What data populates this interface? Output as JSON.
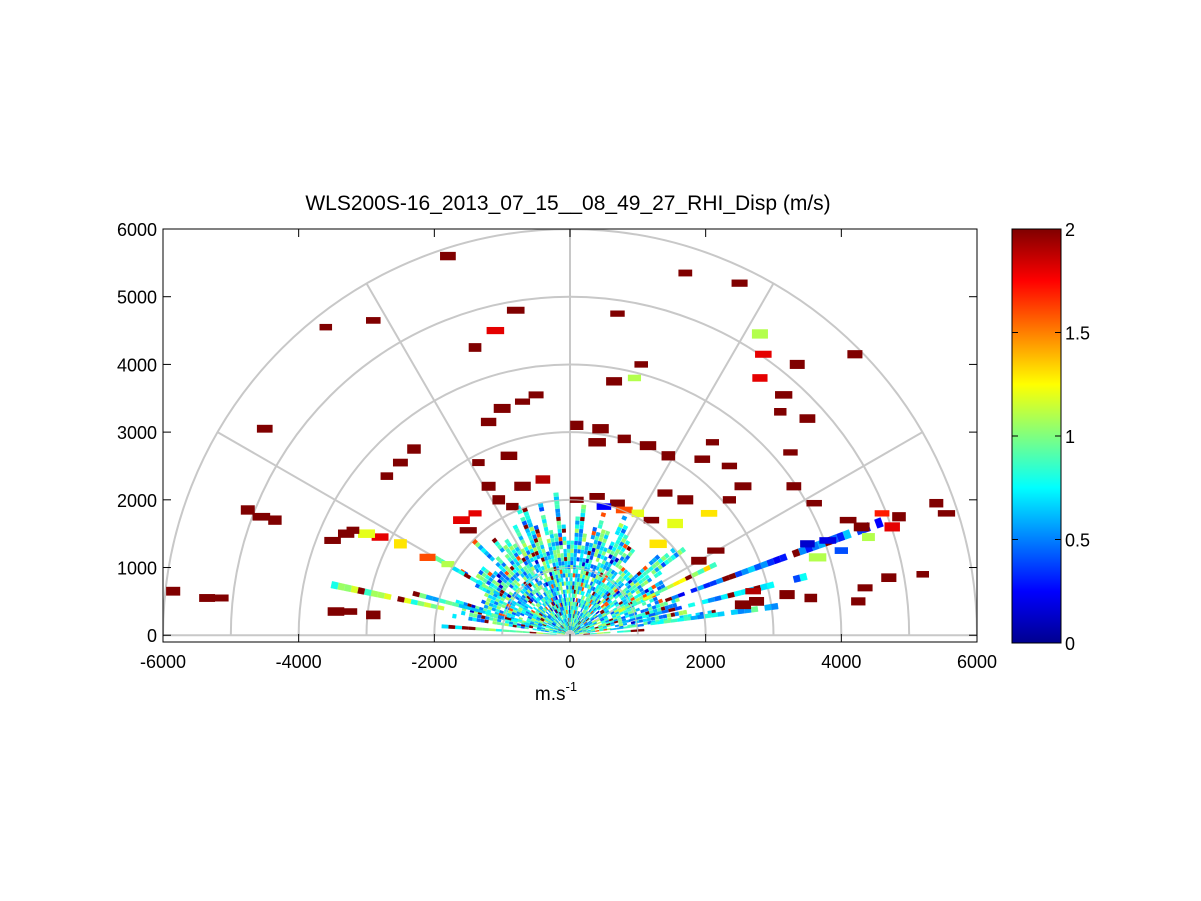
{
  "chart_data": {
    "type": "heatmap",
    "projection": "polar-rhi-semicircle",
    "title": "WLS200S-16_2013_07_15__08_49_27_RHI_Disp (m/s)",
    "xlabel": {
      "base": "m.s",
      "sup": "-1"
    },
    "ylabel": "",
    "xlim": [
      -6000,
      6000
    ],
    "ylim": [
      -100,
      6000
    ],
    "xticks": [
      -6000,
      -4000,
      -2000,
      0,
      2000,
      4000,
      6000
    ],
    "xtick_labels": [
      "-6000",
      "-4000",
      "-2000",
      "0",
      "2000",
      "4000",
      "6000"
    ],
    "yticks": [
      0,
      1000,
      2000,
      3000,
      4000,
      5000,
      6000
    ],
    "ytick_labels": [
      "0",
      "1000",
      "2000",
      "3000",
      "4000",
      "5000",
      "6000"
    ],
    "range_rings": [
      1000,
      2000,
      3000,
      4000,
      5000,
      6000
    ],
    "radial_lines_deg": [
      0,
      30,
      60,
      90,
      120,
      150,
      180
    ],
    "colorbar": {
      "colormap": "jet",
      "clim": [
        0,
        2
      ],
      "ticks": [
        0,
        0.5,
        1,
        1.5,
        2
      ],
      "tick_labels": [
        "0",
        "0.5",
        "1",
        "1.5",
        "2"
      ]
    },
    "dense_core": {
      "r_max_m": 2200,
      "value_range": [
        0.4,
        1.1
      ]
    },
    "beams": [
      {
        "az_deg": 168,
        "r_from": 1800,
        "r_to": 3600,
        "value": 1.0
      },
      {
        "az_deg": 165,
        "r_from": 400,
        "r_to": 2400,
        "value": 0.75
      },
      {
        "az_deg": 176,
        "r_from": 200,
        "r_to": 2000,
        "value": 0.9
      },
      {
        "az_deg": 150,
        "r_from": 1200,
        "r_to": 2300,
        "value": 0.8
      },
      {
        "az_deg": 8,
        "r_from": 600,
        "r_to": 3100,
        "value": 0.75
      },
      {
        "az_deg": 14,
        "r_from": 800,
        "r_to": 3600,
        "value": 0.55
      },
      {
        "az_deg": 20,
        "r_from": 1500,
        "r_to": 4900,
        "value": 0.45
      },
      {
        "az_deg": 26,
        "r_from": 800,
        "r_to": 2400,
        "value": 1.1
      },
      {
        "az_deg": 4,
        "r_from": 200,
        "r_to": 1200,
        "value": 0.9
      }
    ],
    "cells": [
      {
        "x": -5850,
        "y": 650,
        "v": 2
      },
      {
        "x": -5350,
        "y": 550,
        "v": 2
      },
      {
        "x": -5150,
        "y": 550,
        "v": 2
      },
      {
        "x": -4750,
        "y": 1850,
        "v": 2
      },
      {
        "x": -4550,
        "y": 1750,
        "v": 2
      },
      {
        "x": -4350,
        "y": 1700,
        "v": 2
      },
      {
        "x": -4500,
        "y": 3050,
        "v": 2
      },
      {
        "x": -3600,
        "y": 4550,
        "v": 2
      },
      {
        "x": -2900,
        "y": 4650,
        "v": 2
      },
      {
        "x": -1800,
        "y": 5600,
        "v": 2
      },
      {
        "x": -3500,
        "y": 1400,
        "v": 2
      },
      {
        "x": -3300,
        "y": 1500,
        "v": 2
      },
      {
        "x": -3450,
        "y": 350,
        "v": 2
      },
      {
        "x": -3250,
        "y": 350,
        "v": 2
      },
      {
        "x": -2900,
        "y": 300,
        "v": 2
      },
      {
        "x": -2700,
        "y": 2350,
        "v": 2
      },
      {
        "x": -2500,
        "y": 2550,
        "v": 2
      },
      {
        "x": -2300,
        "y": 2750,
        "v": 2
      },
      {
        "x": -1600,
        "y": 1700,
        "v": 1.8
      },
      {
        "x": -1400,
        "y": 1800,
        "v": 1.8
      },
      {
        "x": -1500,
        "y": 1550,
        "v": 2
      },
      {
        "x": -1350,
        "y": 2550,
        "v": 2
      },
      {
        "x": -900,
        "y": 2650,
        "v": 2
      },
      {
        "x": -1000,
        "y": 3350,
        "v": 2
      },
      {
        "x": -700,
        "y": 3450,
        "v": 2
      },
      {
        "x": -500,
        "y": 3550,
        "v": 2
      },
      {
        "x": -1200,
        "y": 3150,
        "v": 2
      },
      {
        "x": -1400,
        "y": 4250,
        "v": 2
      },
      {
        "x": -1100,
        "y": 4500,
        "v": 1.8
      },
      {
        "x": -800,
        "y": 4800,
        "v": 2
      },
      {
        "x": -1200,
        "y": 2200,
        "v": 2
      },
      {
        "x": -1050,
        "y": 2000,
        "v": 2
      },
      {
        "x": -850,
        "y": 1900,
        "v": 2
      },
      {
        "x": -700,
        "y": 2200,
        "v": 2
      },
      {
        "x": -400,
        "y": 2300,
        "v": 1.9
      },
      {
        "x": -2500,
        "y": 1350,
        "v": 1.3
      },
      {
        "x": -2800,
        "y": 1450,
        "v": 1.8
      },
      {
        "x": -3000,
        "y": 1500,
        "v": 1.2
      },
      {
        "x": -3200,
        "y": 1550,
        "v": 2
      },
      {
        "x": -2100,
        "y": 1150,
        "v": 1.6
      },
      {
        "x": -1800,
        "y": 1050,
        "v": 1.1
      },
      {
        "x": 100,
        "y": 2000,
        "v": 2
      },
      {
        "x": 400,
        "y": 2050,
        "v": 2
      },
      {
        "x": 700,
        "y": 1950,
        "v": 2
      },
      {
        "x": 500,
        "y": 1900,
        "v": 0.25
      },
      {
        "x": 800,
        "y": 1850,
        "v": 1.6
      },
      {
        "x": 1000,
        "y": 1800,
        "v": 1.2
      },
      {
        "x": 1200,
        "y": 1700,
        "v": 2
      },
      {
        "x": 1400,
        "y": 2100,
        "v": 2
      },
      {
        "x": 1700,
        "y": 2000,
        "v": 2
      },
      {
        "x": 1300,
        "y": 1350,
        "v": 1.3
      },
      {
        "x": 1550,
        "y": 1650,
        "v": 1.2
      },
      {
        "x": 2050,
        "y": 1800,
        "v": 1.3
      },
      {
        "x": 2350,
        "y": 2000,
        "v": 2
      },
      {
        "x": 2550,
        "y": 2200,
        "v": 2
      },
      {
        "x": 2100,
        "y": 2850,
        "v": 2
      },
      {
        "x": 1950,
        "y": 2600,
        "v": 2
      },
      {
        "x": 2350,
        "y": 2500,
        "v": 2
      },
      {
        "x": 1450,
        "y": 2650,
        "v": 2
      },
      {
        "x": 1150,
        "y": 2800,
        "v": 2
      },
      {
        "x": 800,
        "y": 2900,
        "v": 2
      },
      {
        "x": 400,
        "y": 2850,
        "v": 2
      },
      {
        "x": 100,
        "y": 3100,
        "v": 2
      },
      {
        "x": 450,
        "y": 3050,
        "v": 2
      },
      {
        "x": 650,
        "y": 3750,
        "v": 2
      },
      {
        "x": 950,
        "y": 3800,
        "v": 1.1
      },
      {
        "x": 1050,
        "y": 4000,
        "v": 2
      },
      {
        "x": 700,
        "y": 4750,
        "v": 2
      },
      {
        "x": 1700,
        "y": 5350,
        "v": 2
      },
      {
        "x": 2500,
        "y": 5200,
        "v": 2
      },
      {
        "x": 4200,
        "y": 4150,
        "v": 2
      },
      {
        "x": 3350,
        "y": 4000,
        "v": 2
      },
      {
        "x": 2800,
        "y": 4450,
        "v": 1.1
      },
      {
        "x": 2850,
        "y": 4150,
        "v": 1.8
      },
      {
        "x": 2800,
        "y": 3800,
        "v": 1.8
      },
      {
        "x": 3150,
        "y": 3550,
        "v": 2
      },
      {
        "x": 3100,
        "y": 3300,
        "v": 2
      },
      {
        "x": 3500,
        "y": 3200,
        "v": 2
      },
      {
        "x": 3250,
        "y": 2700,
        "v": 2
      },
      {
        "x": 3300,
        "y": 2200,
        "v": 2
      },
      {
        "x": 3600,
        "y": 1950,
        "v": 2
      },
      {
        "x": 3500,
        "y": 1350,
        "v": 0.15
      },
      {
        "x": 3800,
        "y": 1400,
        "v": 0.2
      },
      {
        "x": 4000,
        "y": 1250,
        "v": 0.4
      },
      {
        "x": 4100,
        "y": 1700,
        "v": 2
      },
      {
        "x": 4300,
        "y": 1600,
        "v": 2
      },
      {
        "x": 4600,
        "y": 1800,
        "v": 1.7
      },
      {
        "x": 4750,
        "y": 1600,
        "v": 1.8
      },
      {
        "x": 4850,
        "y": 1750,
        "v": 2
      },
      {
        "x": 5400,
        "y": 1950,
        "v": 2
      },
      {
        "x": 5550,
        "y": 1800,
        "v": 2
      },
      {
        "x": 5200,
        "y": 900,
        "v": 2
      },
      {
        "x": 4700,
        "y": 850,
        "v": 2
      },
      {
        "x": 4350,
        "y": 700,
        "v": 2
      },
      {
        "x": 4250,
        "y": 500,
        "v": 2
      },
      {
        "x": 3550,
        "y": 550,
        "v": 2
      },
      {
        "x": 3200,
        "y": 600,
        "v": 2
      },
      {
        "x": 2750,
        "y": 500,
        "v": 2
      },
      {
        "x": 2550,
        "y": 450,
        "v": 2
      },
      {
        "x": 2150,
        "y": 1250,
        "v": 2
      },
      {
        "x": 1900,
        "y": 1100,
        "v": 2
      },
      {
        "x": 2700,
        "y": 650,
        "v": 1.9
      },
      {
        "x": 4400,
        "y": 1450,
        "v": 1.1
      },
      {
        "x": 3650,
        "y": 1150,
        "v": 1.1
      }
    ]
  }
}
